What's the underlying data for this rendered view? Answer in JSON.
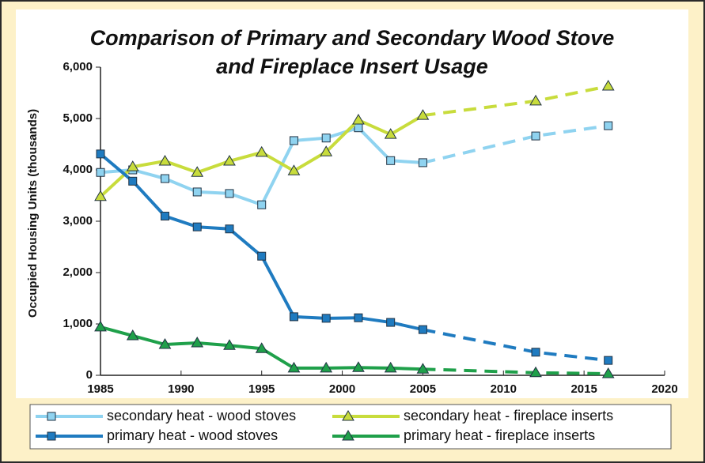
{
  "chart_data": {
    "type": "line",
    "title": [
      "Comparison of Primary and Secondary Wood Stove",
      "and Fireplace Insert Usage"
    ],
    "y_label": "Occupied Housing Units (thousands)",
    "x": [
      1985,
      1987,
      1989,
      1991,
      1993,
      1995,
      1997,
      1999,
      2001,
      2003,
      2005,
      2012,
      2016.5
    ],
    "dashed_from_x": 2005,
    "series": [
      {
        "name": "secondary heat - wood stoves",
        "color": "#8fd3f0",
        "marker": "square",
        "values": [
          3950,
          4000,
          3830,
          3570,
          3540,
          3320,
          4570,
          4620,
          4820,
          4180,
          4140,
          4660,
          4860
        ]
      },
      {
        "name": "secondary heat - fireplace inserts",
        "color": "#c8dc3c",
        "marker": "triangle",
        "values": [
          3480,
          4060,
          4170,
          3950,
          4170,
          4340,
          3980,
          4350,
          4970,
          4690,
          5060,
          5340,
          5630
        ]
      },
      {
        "name": "primary heat - wood stoves",
        "color": "#1f7bc0",
        "marker": "square",
        "values": [
          4310,
          3780,
          3100,
          2890,
          2850,
          2320,
          1140,
          1110,
          1120,
          1030,
          890,
          450,
          290
        ]
      },
      {
        "name": "primary heat - fireplace inserts",
        "color": "#1fa04a",
        "marker": "triangle",
        "values": [
          940,
          770,
          600,
          630,
          580,
          520,
          140,
          140,
          150,
          140,
          120,
          50,
          30
        ]
      }
    ],
    "xlim": [
      1985,
      2020
    ],
    "xticks": [
      1985,
      1990,
      1995,
      2000,
      2005,
      2010,
      2015,
      2020
    ],
    "ylim": [
      0,
      6000
    ],
    "yticks": [
      0,
      {
        "value": 1000,
        "label": "1,000"
      },
      {
        "value": 2000,
        "label": "2,000"
      },
      {
        "value": 3000,
        "label": "3,000"
      },
      {
        "value": 4000,
        "label": "4,000"
      },
      {
        "value": 5000,
        "label": "5,000"
      },
      {
        "value": 6000,
        "label": "6,000"
      }
    ]
  }
}
